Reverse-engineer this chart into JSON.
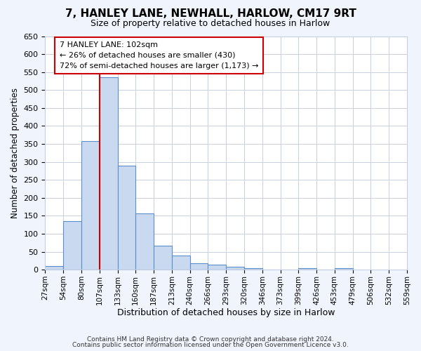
{
  "title": "7, HANLEY LANE, NEWHALL, HARLOW, CM17 9RT",
  "subtitle": "Size of property relative to detached houses in Harlow",
  "xlabel": "Distribution of detached houses by size in Harlow",
  "ylabel": "Number of detached properties",
  "bar_heights": [
    10,
    136,
    358,
    535,
    290,
    157,
    66,
    40,
    18,
    15,
    9,
    4,
    0,
    0,
    4,
    0,
    4
  ],
  "bin_labels": [
    "27sqm",
    "54sqm",
    "80sqm",
    "107sqm",
    "133sqm",
    "160sqm",
    "187sqm",
    "213sqm",
    "240sqm",
    "266sqm",
    "293sqm",
    "320sqm",
    "346sqm",
    "373sqm",
    "399sqm",
    "426sqm",
    "453sqm",
    "479sqm",
    "506sqm",
    "532sqm",
    "559sqm"
  ],
  "ylim": [
    0,
    650
  ],
  "yticks": [
    0,
    50,
    100,
    150,
    200,
    250,
    300,
    350,
    400,
    450,
    500,
    550,
    600,
    650
  ],
  "bar_color": "#c9d9f0",
  "bar_edge_color": "#5b8fcc",
  "vline_color": "#cc0000",
  "annotation_title": "7 HANLEY LANE: 102sqm",
  "annotation_line1": "← 26% of detached houses are smaller (430)",
  "annotation_line2": "72% of semi-detached houses are larger (1,173) →",
  "annotation_box_color": "#ffffff",
  "annotation_box_edge": "#cc0000",
  "footer1": "Contains HM Land Registry data © Crown copyright and database right 2024.",
  "footer2": "Contains public sector information licensed under the Open Government Licence v3.0.",
  "background_color": "#f0f4fc",
  "plot_background": "#ffffff",
  "grid_color": "#c8d0e0"
}
